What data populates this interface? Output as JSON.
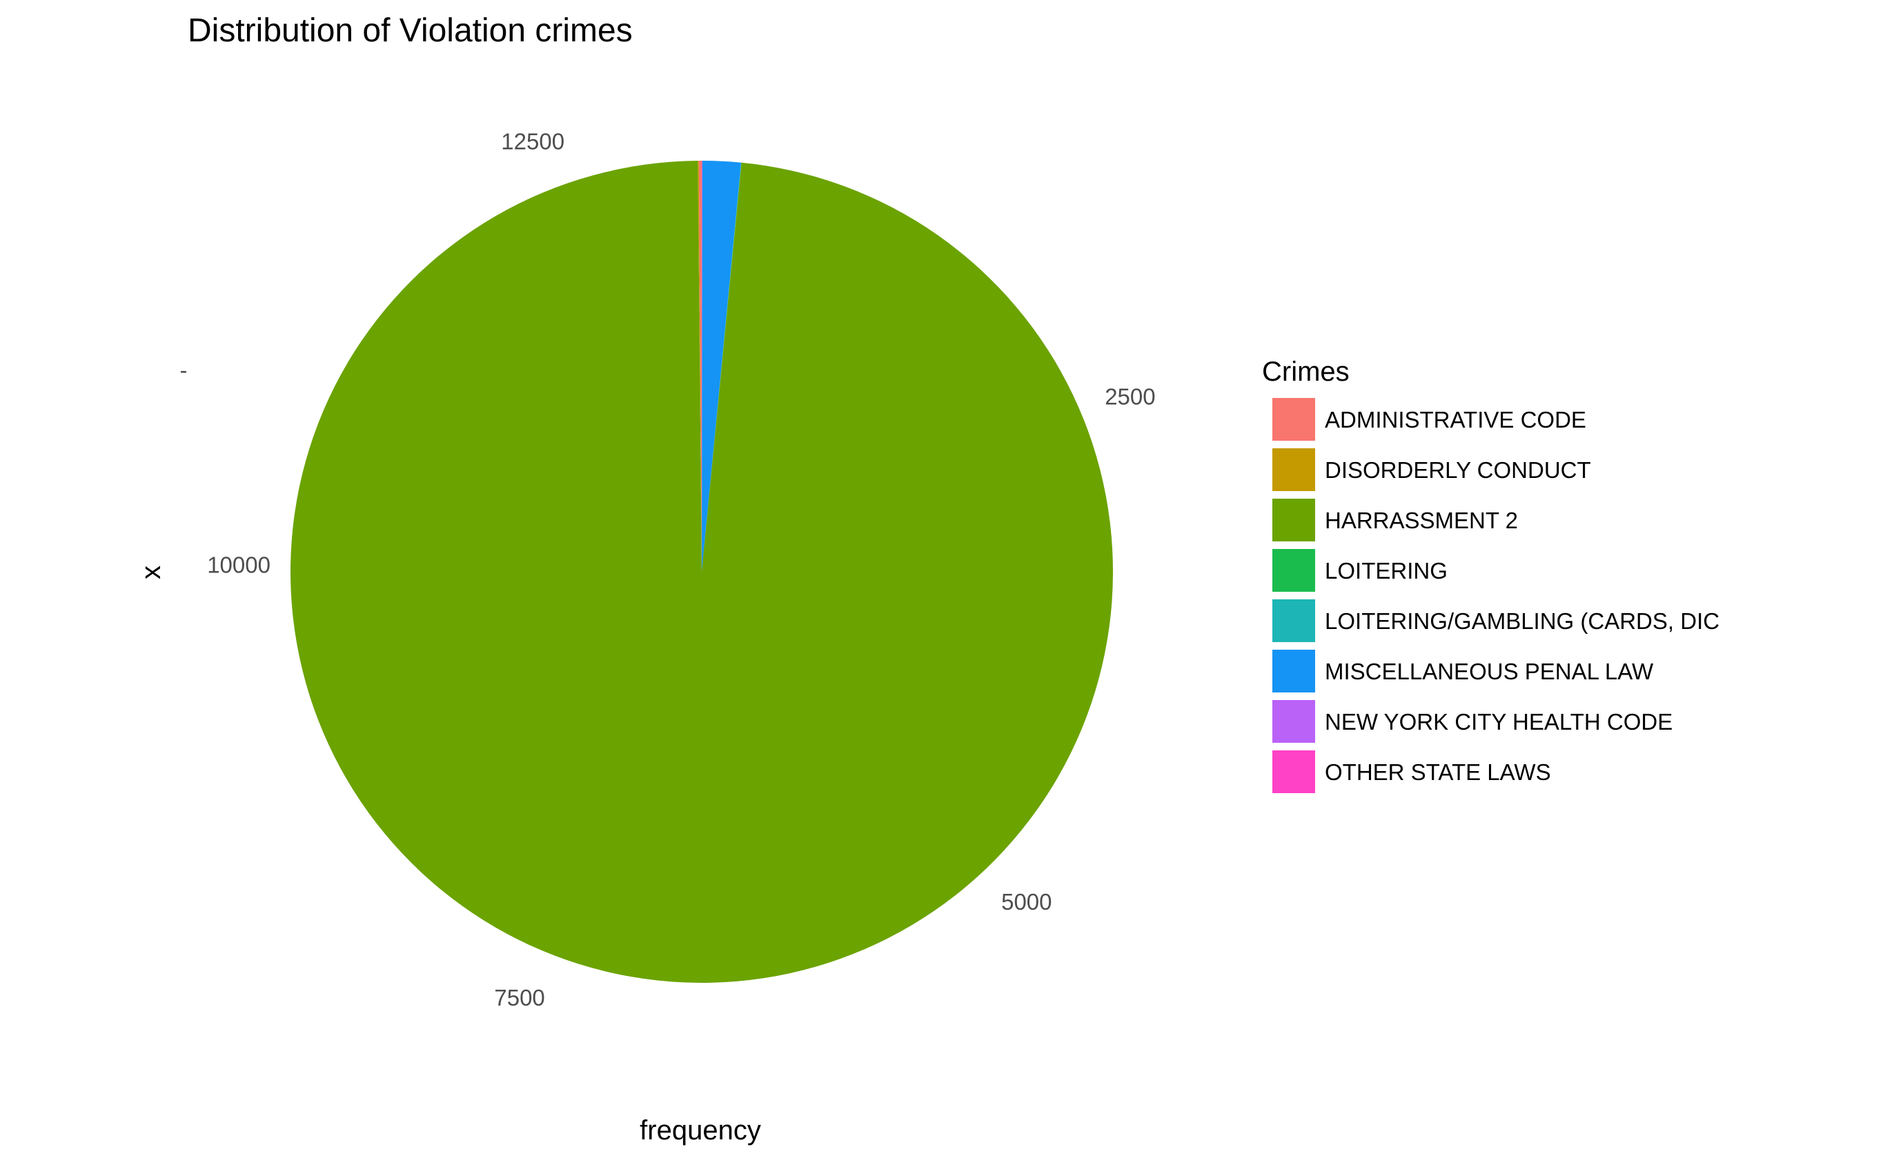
{
  "chart_data": {
    "type": "pie",
    "title": "Distribution of Violation crimes",
    "xlabel": "frequency",
    "ylabel": "x",
    "y_tick_label": "-",
    "theta_ticks": [
      "2500",
      "5000",
      "7500",
      "10000",
      "12500"
    ],
    "theta_tick_values": [
      2500,
      5000,
      7500,
      10000,
      12500
    ],
    "total": 13290,
    "legend": {
      "title": "Crimes",
      "position": "right"
    },
    "series": [
      {
        "name": "ADMINISTRATIVE CODE",
        "value": 15,
        "color": "#F8766D"
      },
      {
        "name": "DISORDERLY CONDUCT",
        "value": 5,
        "color": "#C49A00"
      },
      {
        "name": "HARRASSMENT 2",
        "value": 13065,
        "color": "#6BA300"
      },
      {
        "name": "LOITERING",
        "value": 1,
        "color": "#1ABC4E"
      },
      {
        "name": "LOITERING/GAMBLING (CARDS, DIC",
        "value": 1,
        "color": "#1DB5B5"
      },
      {
        "name": "MISCELLANEOUS PENAL LAW",
        "value": 200,
        "color": "#1594F5"
      },
      {
        "name": "NEW YORK CITY HEALTH CODE",
        "value": 1,
        "color": "#BA62F8"
      },
      {
        "name": "OTHER STATE LAWS",
        "value": 2,
        "color": "#FF42C6"
      }
    ],
    "grid": false
  }
}
